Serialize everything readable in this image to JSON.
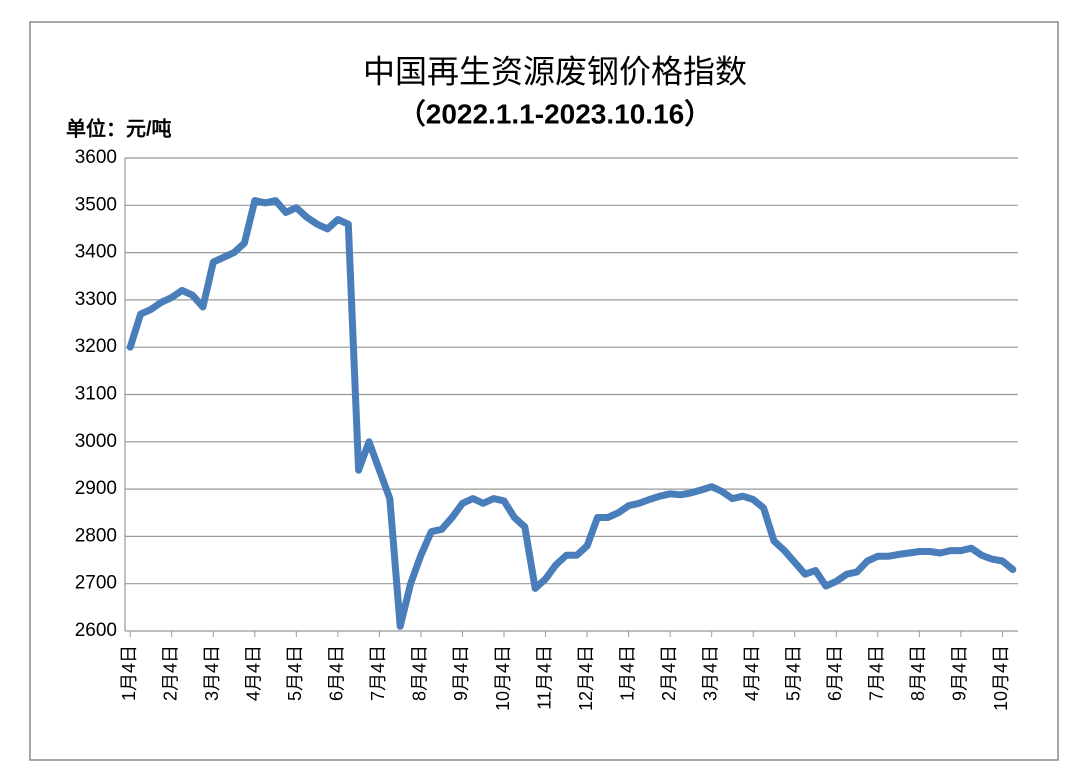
{
  "chart_data": {
    "type": "line",
    "title": "中国再生资源废钢价格指数",
    "subtitle": "（2022.1.1-2023.10.16）",
    "y_label": "单位：元/吨",
    "categories": [
      "1月4日",
      null,
      null,
      null,
      "2月4日",
      null,
      null,
      null,
      "3月4日",
      null,
      null,
      null,
      "4月4日",
      null,
      null,
      null,
      "5月4日",
      null,
      null,
      null,
      "6月4日",
      null,
      null,
      null,
      "7月4日",
      null,
      null,
      null,
      "8月4日",
      null,
      null,
      null,
      "9月4日",
      null,
      null,
      null,
      "10月4日",
      null,
      null,
      null,
      "11月4日",
      null,
      null,
      null,
      "12月4日",
      null,
      null,
      null,
      "1月4日",
      null,
      null,
      null,
      "2月4日",
      null,
      null,
      null,
      "3月4日",
      null,
      null,
      null,
      "4月4日",
      null,
      null,
      null,
      "5月4日",
      null,
      null,
      null,
      "6月4日",
      null,
      null,
      null,
      "7月4日",
      null,
      null,
      null,
      "8月4日",
      null,
      null,
      null,
      "9月4日",
      null,
      null,
      null,
      "10月4日",
      null
    ],
    "values": [
      3200,
      3270,
      3280,
      3295,
      3305,
      3320,
      3310,
      3285,
      3380,
      3390,
      3400,
      3420,
      3510,
      3505,
      3510,
      3485,
      3495,
      3475,
      3460,
      3450,
      3470,
      3460,
      2940,
      3000,
      2940,
      2880,
      2610,
      2700,
      2760,
      2810,
      2815,
      2840,
      2870,
      2880,
      2870,
      2880,
      2875,
      2840,
      2820,
      2690,
      2710,
      2740,
      2760,
      2760,
      2780,
      2840,
      2840,
      2850,
      2865,
      2870,
      2878,
      2885,
      2890,
      2888,
      2892,
      2898,
      2905,
      2895,
      2880,
      2885,
      2878,
      2860,
      2790,
      2770,
      2745,
      2720,
      2728,
      2695,
      2705,
      2720,
      2725,
      2748,
      2758,
      2758,
      2762,
      2765,
      2768,
      2768,
      2765,
      2770,
      2770,
      2775,
      2760,
      2752,
      2748,
      2730
    ],
    "color": "#4a7ebb",
    "ylim": [
      2600,
      3600
    ],
    "yticks": [
      2600,
      2700,
      2800,
      2900,
      3000,
      3100,
      3200,
      3300,
      3400,
      3500,
      3600
    ],
    "grid": true
  }
}
